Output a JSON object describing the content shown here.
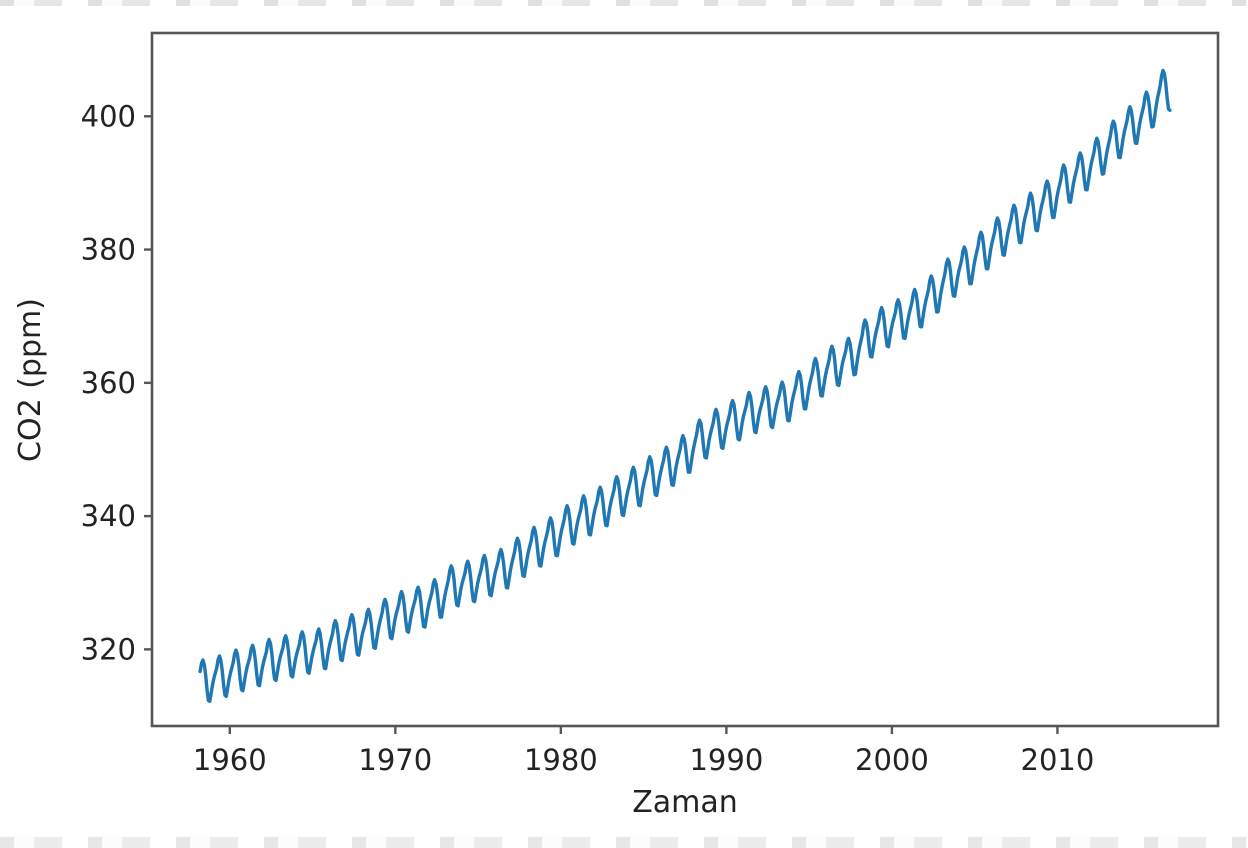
{
  "chart_data": {
    "type": "line",
    "title": "",
    "xlabel": "Zaman",
    "ylabel": "CO2 (ppm)",
    "legend": null,
    "grid": false,
    "line_color": "#1f77b4",
    "axis_color": "#565656",
    "text_color": "#232323",
    "xlim": [
      1955.3,
      2019.7
    ],
    "ylim": [
      308.5,
      412.5
    ],
    "xticks": [
      1960,
      1970,
      1980,
      1990,
      2000,
      2010
    ],
    "yticks": [
      320,
      340,
      360,
      380,
      400
    ],
    "series_description": "Monthly atmospheric CO2 concentration (ppm) with seasonal cycle, Mar 1958 - Oct 2016",
    "start": {
      "year": 1958,
      "month": 3
    },
    "end": {
      "year": 2016,
      "month": 10
    },
    "annual_means_first_year": 1958,
    "annual_means": [
      315.3,
      316.0,
      316.9,
      317.6,
      318.5,
      319.0,
      319.6,
      320.0,
      321.4,
      322.2,
      323.0,
      324.6,
      325.7,
      326.3,
      327.5,
      329.7,
      330.2,
      331.1,
      332.0,
      333.8,
      335.4,
      336.8,
      338.7,
      340.1,
      341.4,
      343.0,
      344.4,
      346.0,
      347.4,
      349.2,
      351.6,
      353.1,
      354.4,
      355.6,
      356.4,
      357.1,
      358.8,
      360.8,
      362.6,
      363.7,
      366.7,
      368.4,
      369.5,
      371.1,
      373.2,
      375.8,
      377.5,
      379.8,
      381.9,
      383.8,
      385.6,
      387.4,
      389.9,
      391.6,
      393.9,
      396.5,
      398.6,
      400.8,
      404.2
    ],
    "seasonal_offsets_by_month": [
      0.0,
      0.7,
      1.4,
      2.6,
      3.1,
      2.4,
      0.8,
      -1.4,
      -3.1,
      -3.3,
      -2.1,
      -0.9
    ]
  }
}
